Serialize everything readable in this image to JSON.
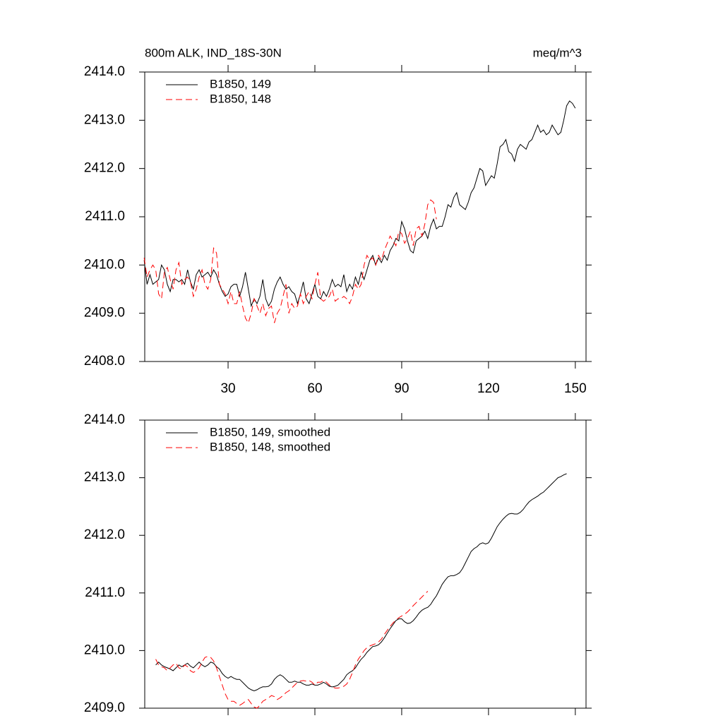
{
  "chart_data": [
    {
      "type": "line",
      "title": "800m ALK, IND_18S-30N",
      "title_right": "meq/m^3",
      "x": [
        1,
        2,
        3,
        4,
        5,
        6,
        7,
        8,
        9,
        10,
        11,
        12,
        13,
        14,
        15,
        16,
        17,
        18,
        19,
        20,
        21,
        22,
        23,
        24,
        25,
        26,
        27,
        28,
        29,
        30,
        31,
        32,
        33,
        34,
        35,
        36,
        37,
        38,
        39,
        40,
        41,
        42,
        43,
        44,
        45,
        46,
        47,
        48,
        49,
        50,
        51,
        52,
        53,
        54,
        55,
        56,
        57,
        58,
        59,
        60,
        61,
        62,
        63,
        64,
        65,
        66,
        67,
        68,
        69,
        70,
        71,
        72,
        73,
        74,
        75,
        76,
        77,
        78,
        79,
        80,
        81,
        82,
        83,
        84,
        85,
        86,
        87,
        88,
        89,
        90,
        91,
        92,
        93,
        94,
        95,
        96,
        97,
        98,
        99,
        100,
        101,
        102,
        103,
        104,
        105,
        106,
        107,
        108,
        109,
        110,
        111,
        112,
        113,
        114,
        115,
        116,
        117,
        118,
        119,
        120,
        121,
        122,
        123,
        124,
        125,
        126,
        127,
        128,
        129,
        130,
        131,
        132,
        133,
        134,
        135,
        136,
        137,
        138,
        139,
        140,
        141,
        142,
        143,
        144,
        145,
        146,
        147,
        148,
        149,
        150
      ],
      "series": [
        {
          "name": "B1850, 149",
          "color": "#000000",
          "dash": false,
          "values": [
            2410.1,
            2409.6,
            2409.8,
            2409.6,
            2409.65,
            2409.7,
            2410.0,
            2409.9,
            2409.6,
            2409.45,
            2409.7,
            2409.7,
            2409.65,
            2409.7,
            2409.6,
            2409.9,
            2409.65,
            2409.5,
            2409.8,
            2409.9,
            2409.75,
            2409.8,
            2409.85,
            2409.75,
            2409.9,
            2409.8,
            2409.6,
            2409.45,
            2409.35,
            2409.4,
            2409.55,
            2409.6,
            2409.6,
            2409.35,
            2409.55,
            2409.85,
            2409.5,
            2409.15,
            2409.3,
            2409.2,
            2409.35,
            2409.7,
            2409.3,
            2409.15,
            2409.25,
            2409.5,
            2409.65,
            2409.75,
            2409.6,
            2409.5,
            2409.55,
            2409.45,
            2409.4,
            2409.2,
            2409.4,
            2409.65,
            2409.3,
            2409.2,
            2409.4,
            2409.6,
            2409.35,
            2409.3,
            2409.45,
            2409.35,
            2409.5,
            2409.7,
            2409.55,
            2409.6,
            2409.55,
            2409.8,
            2409.45,
            2409.6,
            2409.5,
            2409.75,
            2409.6,
            2409.85,
            2409.7,
            2409.9,
            2410.1,
            2410.2,
            2410.0,
            2410.15,
            2410.05,
            2410.2,
            2410.1,
            2410.3,
            2410.4,
            2410.55,
            2410.5,
            2410.9,
            2410.75,
            2410.5,
            2410.3,
            2410.25,
            2410.5,
            2410.55,
            2410.6,
            2410.7,
            2410.55,
            2410.8,
            2410.95,
            2410.75,
            2410.8,
            2410.8,
            2411.0,
            2411.25,
            2411.2,
            2411.4,
            2411.5,
            2411.25,
            2411.2,
            2411.15,
            2411.3,
            2411.5,
            2411.6,
            2411.8,
            2412.0,
            2411.95,
            2411.65,
            2411.75,
            2411.85,
            2411.8,
            2412.1,
            2412.45,
            2412.5,
            2412.6,
            2412.35,
            2412.3,
            2412.15,
            2412.4,
            2412.5,
            2412.45,
            2412.4,
            2412.55,
            2412.6,
            2412.75,
            2412.9,
            2412.75,
            2412.8,
            2412.7,
            2412.75,
            2412.9,
            2412.8,
            2412.7,
            2412.75,
            2413.0,
            2413.3,
            2413.4,
            2413.35,
            2413.25
          ]
        },
        {
          "name": "B1850, 148",
          "color": "#ff0000",
          "dash": true,
          "values": [
            2410.15,
            2409.75,
            2409.9,
            2410.0,
            2409.9,
            2409.4,
            2409.3,
            2409.85,
            2409.95,
            2409.7,
            2409.5,
            2409.9,
            2410.05,
            2409.6,
            2409.7,
            2409.75,
            2409.65,
            2409.35,
            2409.5,
            2409.75,
            2409.9,
            2409.6,
            2409.5,
            2409.7,
            2410.35,
            2410.25,
            2409.6,
            2409.5,
            2409.4,
            2409.2,
            2409.45,
            2409.2,
            2409.2,
            2409.45,
            2409.15,
            2408.9,
            2408.8,
            2409.0,
            2409.3,
            2409.15,
            2409.0,
            2409.2,
            2408.95,
            2409.1,
            2409.15,
            2408.8,
            2409.0,
            2409.1,
            2409.35,
            2409.6,
            2409.0,
            2409.2,
            2409.1,
            2409.15,
            2409.4,
            2409.2,
            2409.35,
            2409.45,
            2409.3,
            2409.6,
            2409.85,
            2409.3,
            2409.25,
            2409.3,
            2409.35,
            2409.5,
            2409.25,
            2409.3,
            2409.3,
            2409.35,
            2409.3,
            2409.2,
            2409.35,
            2409.6,
            2409.5,
            2409.6,
            2410.0,
            2410.2,
            2410.1,
            2410.15,
            2410.0,
            2410.2,
            2410.1,
            2410.3,
            2410.45,
            2410.6,
            2410.5,
            2410.4,
            2410.7,
            2410.65,
            2410.45,
            2410.55,
            2410.7,
            2410.4,
            2410.75,
            2410.8,
            2410.6,
            2410.85,
            2411.25,
            2411.35,
            2411.3,
            2410.95,
            null,
            null,
            null,
            null,
            null,
            null,
            null,
            null,
            null,
            null,
            null,
            null,
            null,
            null,
            null,
            null,
            null,
            null,
            null,
            null,
            null,
            null,
            null,
            null,
            null,
            null,
            null,
            null,
            null,
            null,
            null,
            null,
            null,
            null,
            null,
            null,
            null,
            null,
            null,
            null,
            null,
            null,
            null,
            null,
            null,
            null,
            null,
            null
          ]
        }
      ],
      "xlim": [
        1.2,
        153.7
      ],
      "xticks": [
        30,
        60,
        90,
        120,
        150
      ],
      "show_xtick_labels": true,
      "ylim": [
        2408,
        2414
      ],
      "yticks": [
        {
          "value": 2408,
          "label": "2408.0"
        },
        {
          "value": 2409,
          "label": "2409.0"
        },
        {
          "value": 2410,
          "label": "2410.0"
        },
        {
          "value": 2411,
          "label": "2411.0"
        },
        {
          "value": 2412,
          "label": "2412.0"
        },
        {
          "value": 2413,
          "label": "2413.0"
        },
        {
          "value": 2414,
          "label": "2414.0"
        }
      ],
      "legend": "upper left",
      "grid": false
    },
    {
      "type": "line",
      "x": [
        1,
        2,
        3,
        4,
        5,
        6,
        7,
        8,
        9,
        10,
        11,
        12,
        13,
        14,
        15,
        16,
        17,
        18,
        19,
        20,
        21,
        22,
        23,
        24,
        25,
        26,
        27,
        28,
        29,
        30,
        31,
        32,
        33,
        34,
        35,
        36,
        37,
        38,
        39,
        40,
        41,
        42,
        43,
        44,
        45,
        46,
        47,
        48,
        49,
        50,
        51,
        52,
        53,
        54,
        55,
        56,
        57,
        58,
        59,
        60,
        61,
        62,
        63,
        64,
        65,
        66,
        67,
        68,
        69,
        70,
        71,
        72,
        73,
        74,
        75,
        76,
        77,
        78,
        79,
        80,
        81,
        82,
        83,
        84,
        85,
        86,
        87,
        88,
        89,
        90,
        91,
        92,
        93,
        94,
        95,
        96,
        97,
        98,
        99,
        100,
        101,
        102,
        103,
        104,
        105,
        106,
        107,
        108,
        109,
        110,
        111,
        112,
        113,
        114,
        115,
        116,
        117,
        118,
        119,
        120,
        121,
        122,
        123,
        124,
        125,
        126,
        127,
        128,
        129,
        130,
        131,
        132,
        133,
        134,
        135,
        136,
        137,
        138,
        139,
        140,
        141,
        142,
        143,
        144,
        145,
        146,
        147,
        148,
        149,
        150
      ],
      "series": [
        {
          "name": "B1850, 149, smoothed",
          "color": "#000000",
          "dash": false,
          "values": [
            null,
            null,
            null,
            null,
            2409.75,
            2409.8,
            2409.75,
            2409.72,
            2409.7,
            2409.68,
            2409.65,
            2409.7,
            2409.75,
            2409.72,
            2409.75,
            2409.78,
            2409.73,
            2409.7,
            2409.75,
            2409.8,
            2409.75,
            2409.72,
            2409.75,
            2409.8,
            2409.78,
            2409.72,
            2409.68,
            2409.6,
            2409.55,
            2409.52,
            2409.55,
            2409.52,
            2409.5,
            2409.5,
            2409.45,
            2409.4,
            2409.35,
            2409.32,
            2409.3,
            2409.32,
            2409.35,
            2409.37,
            2409.37,
            2409.38,
            2409.42,
            2409.5,
            2409.55,
            2409.58,
            2409.55,
            2409.5,
            2409.45,
            2409.45,
            2409.47,
            2409.45,
            2409.45,
            2409.42,
            2409.4,
            2409.4,
            2409.42,
            2409.4,
            2409.4,
            2409.42,
            2409.45,
            2409.42,
            2409.38,
            2409.37,
            2409.38,
            2409.4,
            2409.45,
            2409.5,
            2409.58,
            2409.62,
            2409.65,
            2409.7,
            2409.78,
            2409.85,
            2409.9,
            2409.97,
            2410.02,
            2410.07,
            2410.08,
            2410.1,
            2410.15,
            2410.22,
            2410.3,
            2410.38,
            2410.45,
            2410.52,
            2410.55,
            2410.55,
            2410.5,
            2410.47,
            2410.48,
            2410.52,
            2410.58,
            2410.65,
            2410.7,
            2410.73,
            2410.75,
            2410.8,
            2410.88,
            2410.95,
            2411.05,
            2411.15,
            2411.22,
            2411.28,
            2411.3,
            2411.3,
            2411.32,
            2411.35,
            2411.42,
            2411.52,
            2411.62,
            2411.72,
            2411.77,
            2411.8,
            2411.85,
            2411.87,
            2411.85,
            2411.87,
            2411.95,
            2412.05,
            2412.15,
            2412.22,
            2412.28,
            2412.33,
            2412.37,
            2412.38,
            2412.37,
            2412.37,
            2412.4,
            2412.45,
            2412.52,
            2412.58,
            2412.62,
            2412.65,
            2412.68,
            2412.72,
            2412.75,
            2412.8,
            2412.85,
            2412.9,
            2412.95,
            2413.0,
            2413.02,
            2413.05,
            2413.07,
            null,
            null,
            null
          ]
        },
        {
          "name": "B1850, 148, smoothed",
          "color": "#ff0000",
          "dash": true,
          "values": [
            null,
            null,
            null,
            null,
            2409.85,
            2409.75,
            2409.72,
            2409.7,
            2409.65,
            2409.7,
            2409.75,
            2409.78,
            2409.7,
            2409.68,
            2409.75,
            2409.72,
            2409.65,
            2409.62,
            2409.65,
            2409.7,
            2409.8,
            2409.88,
            2409.9,
            2409.88,
            2409.82,
            2409.7,
            2409.55,
            2409.4,
            2409.25,
            2409.15,
            2409.12,
            2409.12,
            2409.08,
            2409.05,
            2409.08,
            2409.12,
            2409.15,
            2409.08,
            2409.02,
            2409.0,
            2409.05,
            2409.12,
            2409.15,
            2409.18,
            2409.22,
            2409.2,
            2409.15,
            2409.18,
            2409.22,
            2409.27,
            2409.3,
            2409.35,
            2409.4,
            2409.45,
            2409.47,
            2409.48,
            2409.47,
            2409.48,
            2409.45,
            2409.4,
            2409.45,
            2409.45,
            2409.48,
            2409.45,
            2409.4,
            2409.37,
            2409.35,
            2409.35,
            2409.36,
            2409.38,
            2409.42,
            2409.5,
            2409.62,
            2409.75,
            2409.85,
            2409.92,
            2410.0,
            2410.05,
            2410.08,
            2410.1,
            2410.12,
            2410.15,
            2410.2,
            2410.28,
            2410.35,
            2410.42,
            2410.48,
            2410.53,
            2410.57,
            2410.6,
            2410.63,
            2410.67,
            2410.72,
            2410.78,
            2410.83,
            2410.88,
            2410.93,
            2410.98,
            2411.03,
            null,
            null,
            null,
            null,
            null,
            null,
            null,
            null,
            null,
            null,
            null,
            null,
            null,
            null,
            null,
            null,
            null,
            null,
            null,
            null,
            null,
            null,
            null,
            null,
            null,
            null,
            null,
            null,
            null,
            null,
            null,
            null,
            null,
            null,
            null,
            null,
            null,
            null,
            null,
            null,
            null,
            null,
            null,
            null,
            null,
            null,
            null,
            null,
            null,
            null,
            null
          ]
        }
      ],
      "xlim": [
        1.2,
        153.7
      ],
      "xticks": [
        30,
        60,
        90,
        120,
        150
      ],
      "show_xtick_labels": false,
      "ylim": [
        2409,
        2414
      ],
      "yticks": [
        {
          "value": 2409,
          "label": "2409.0"
        },
        {
          "value": 2410,
          "label": "2410.0"
        },
        {
          "value": 2411,
          "label": "2411.0"
        },
        {
          "value": 2412,
          "label": "2412.0"
        },
        {
          "value": 2413,
          "label": "2413.0"
        },
        {
          "value": 2414,
          "label": "2414.0"
        }
      ],
      "legend": "upper left",
      "grid": false
    }
  ]
}
